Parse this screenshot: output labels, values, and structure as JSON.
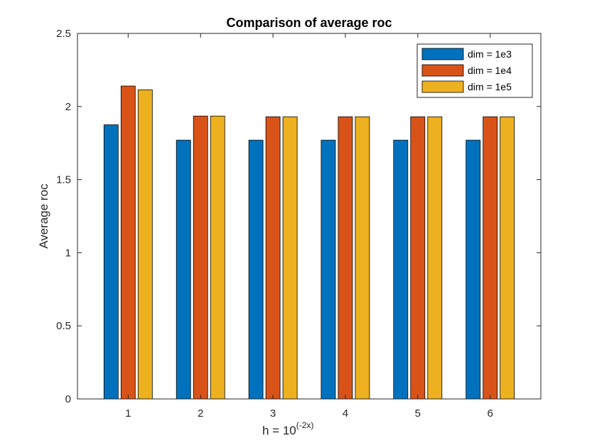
{
  "chart_data": {
    "type": "bar",
    "title": "Comparison of average roc",
    "xlabel": "h = 10",
    "xlabel_superscript": "(-2x)",
    "ylabel": "Average roc",
    "categories": [
      "1",
      "2",
      "3",
      "4",
      "5",
      "6"
    ],
    "ylim": [
      0,
      2.5
    ],
    "yticks": [
      "0",
      "0.5",
      "1",
      "1.5",
      "2",
      "2.5"
    ],
    "grid": false,
    "legend_position": "top-right",
    "series": [
      {
        "name": "dim = 1e3",
        "color": "#0072BD",
        "values": [
          1.875,
          1.77,
          1.77,
          1.77,
          1.77,
          1.77
        ]
      },
      {
        "name": "dim = 1e4",
        "color": "#D95319",
        "values": [
          2.14,
          1.935,
          1.93,
          1.93,
          1.93,
          1.93
        ]
      },
      {
        "name": "dim = 1e5",
        "color": "#EDB120",
        "values": [
          2.115,
          1.935,
          1.93,
          1.93,
          1.93,
          1.93
        ]
      }
    ]
  }
}
